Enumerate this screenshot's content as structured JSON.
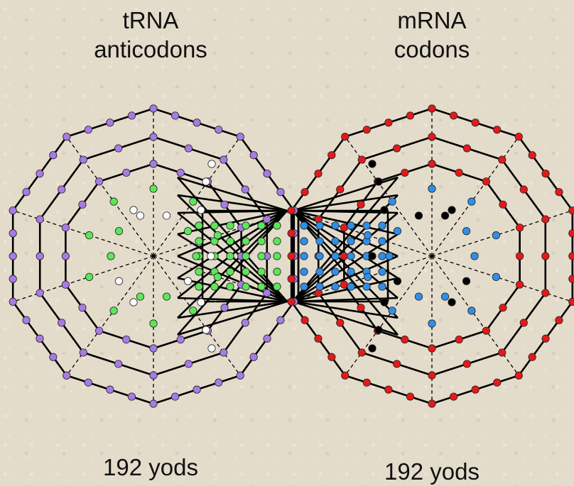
{
  "labels": {
    "left_title_line1": "tRNA",
    "left_title_line2": "anticodons",
    "right_title_line1": "mRNA",
    "right_title_line2": "codons",
    "left_count": "192 yods",
    "right_count": "192 yods"
  },
  "colors": {
    "background": "#e4dccb",
    "lines": "#000000",
    "left_outer_yods": "#a77be6",
    "left_inner_yods": "#5de65a",
    "left_highlight_yods": "#ffffff",
    "right_outer_yods": "#e21a1a",
    "right_inner_yods": "#2f8fe8",
    "right_highlight_yods": "#000000"
  }
}
